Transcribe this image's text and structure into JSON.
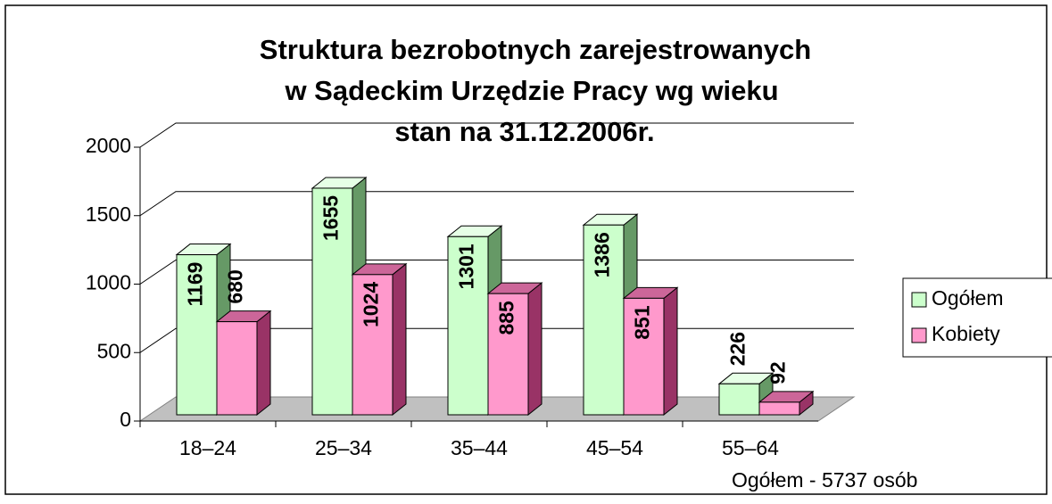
{
  "chart_data": {
    "type": "bar3d",
    "title": [
      "Struktura bezrobotnych zarejestrowanych",
      "w Sądeckim Urzędzie Pracy wg wieku",
      "stan na 31.12.2006r."
    ],
    "categories": [
      "18–24",
      "25–34",
      "35–44",
      "45–54",
      "55–64"
    ],
    "series": [
      {
        "name": "Ogółem",
        "color": "#ccffcc",
        "values": [
          1169,
          1655,
          1301,
          1386,
          226
        ]
      },
      {
        "name": "Kobiety",
        "color": "#ff99cc",
        "values": [
          680,
          1024,
          885,
          851,
          92
        ]
      }
    ],
    "ylim": [
      0,
      2000
    ],
    "yticks": [
      0,
      500,
      1000,
      1500,
      2000
    ],
    "grid": true,
    "legend": "right",
    "annotation": "Ogółem - 5737 osób"
  }
}
